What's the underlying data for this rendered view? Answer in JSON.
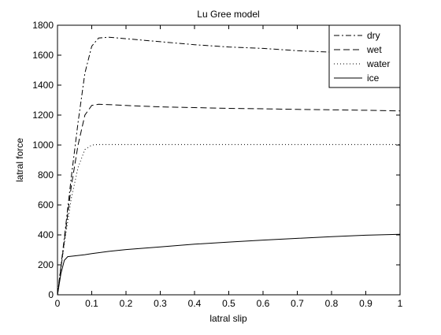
{
  "chart_data": {
    "type": "line",
    "title": "Lu Gree model",
    "xlabel": "latral slip",
    "ylabel": "latral force",
    "xlim": [
      0,
      1
    ],
    "ylim": [
      0,
      1800
    ],
    "xticks": [
      "0",
      "0.1",
      "0.2",
      "0.3",
      "0.4",
      "0.5",
      "0.6",
      "0.7",
      "0.8",
      "0.9",
      "1"
    ],
    "yticks": [
      "0",
      "200",
      "400",
      "600",
      "800",
      "1000",
      "1200",
      "1400",
      "1600",
      "1800"
    ],
    "grid": false,
    "legend_position": "top-right",
    "series": [
      {
        "name": "dry",
        "line_style": "dash-dot",
        "color": "#000000",
        "x": [
          0,
          0.02,
          0.04,
          0.06,
          0.08,
          0.1,
          0.12,
          0.15,
          0.2,
          0.3,
          0.4,
          0.5,
          0.6,
          0.7,
          0.8,
          0.9,
          1.0
        ],
        "y": [
          0,
          380,
          780,
          1150,
          1480,
          1660,
          1715,
          1720,
          1710,
          1690,
          1670,
          1655,
          1645,
          1630,
          1620,
          1610,
          1600
        ]
      },
      {
        "name": "wet",
        "line_style": "dashed",
        "color": "#000000",
        "x": [
          0,
          0.02,
          0.04,
          0.06,
          0.08,
          0.1,
          0.12,
          0.15,
          0.2,
          0.3,
          0.4,
          0.5,
          0.6,
          0.7,
          0.8,
          0.9,
          1.0
        ],
        "y": [
          0,
          360,
          720,
          1000,
          1200,
          1265,
          1272,
          1270,
          1264,
          1255,
          1250,
          1245,
          1242,
          1238,
          1235,
          1232,
          1228
        ]
      },
      {
        "name": "water",
        "line_style": "dotted",
        "color": "#000000",
        "x": [
          0,
          0.02,
          0.04,
          0.06,
          0.08,
          0.1,
          0.12,
          0.2,
          0.3,
          0.4,
          0.5,
          0.6,
          0.7,
          0.8,
          0.9,
          1.0
        ],
        "y": [
          0,
          340,
          640,
          850,
          970,
          1000,
          1003,
          1003,
          1003,
          1003,
          1003,
          1003,
          1003,
          1003,
          1003,
          1003
        ]
      },
      {
        "name": "ice",
        "line_style": "solid",
        "color": "#000000",
        "x": [
          0,
          0.01,
          0.02,
          0.03,
          0.05,
          0.08,
          0.1,
          0.15,
          0.2,
          0.3,
          0.4,
          0.5,
          0.6,
          0.7,
          0.8,
          0.9,
          1.0
        ],
        "y": [
          0,
          140,
          230,
          255,
          260,
          268,
          275,
          290,
          302,
          320,
          338,
          352,
          365,
          377,
          388,
          398,
          404
        ]
      }
    ]
  }
}
